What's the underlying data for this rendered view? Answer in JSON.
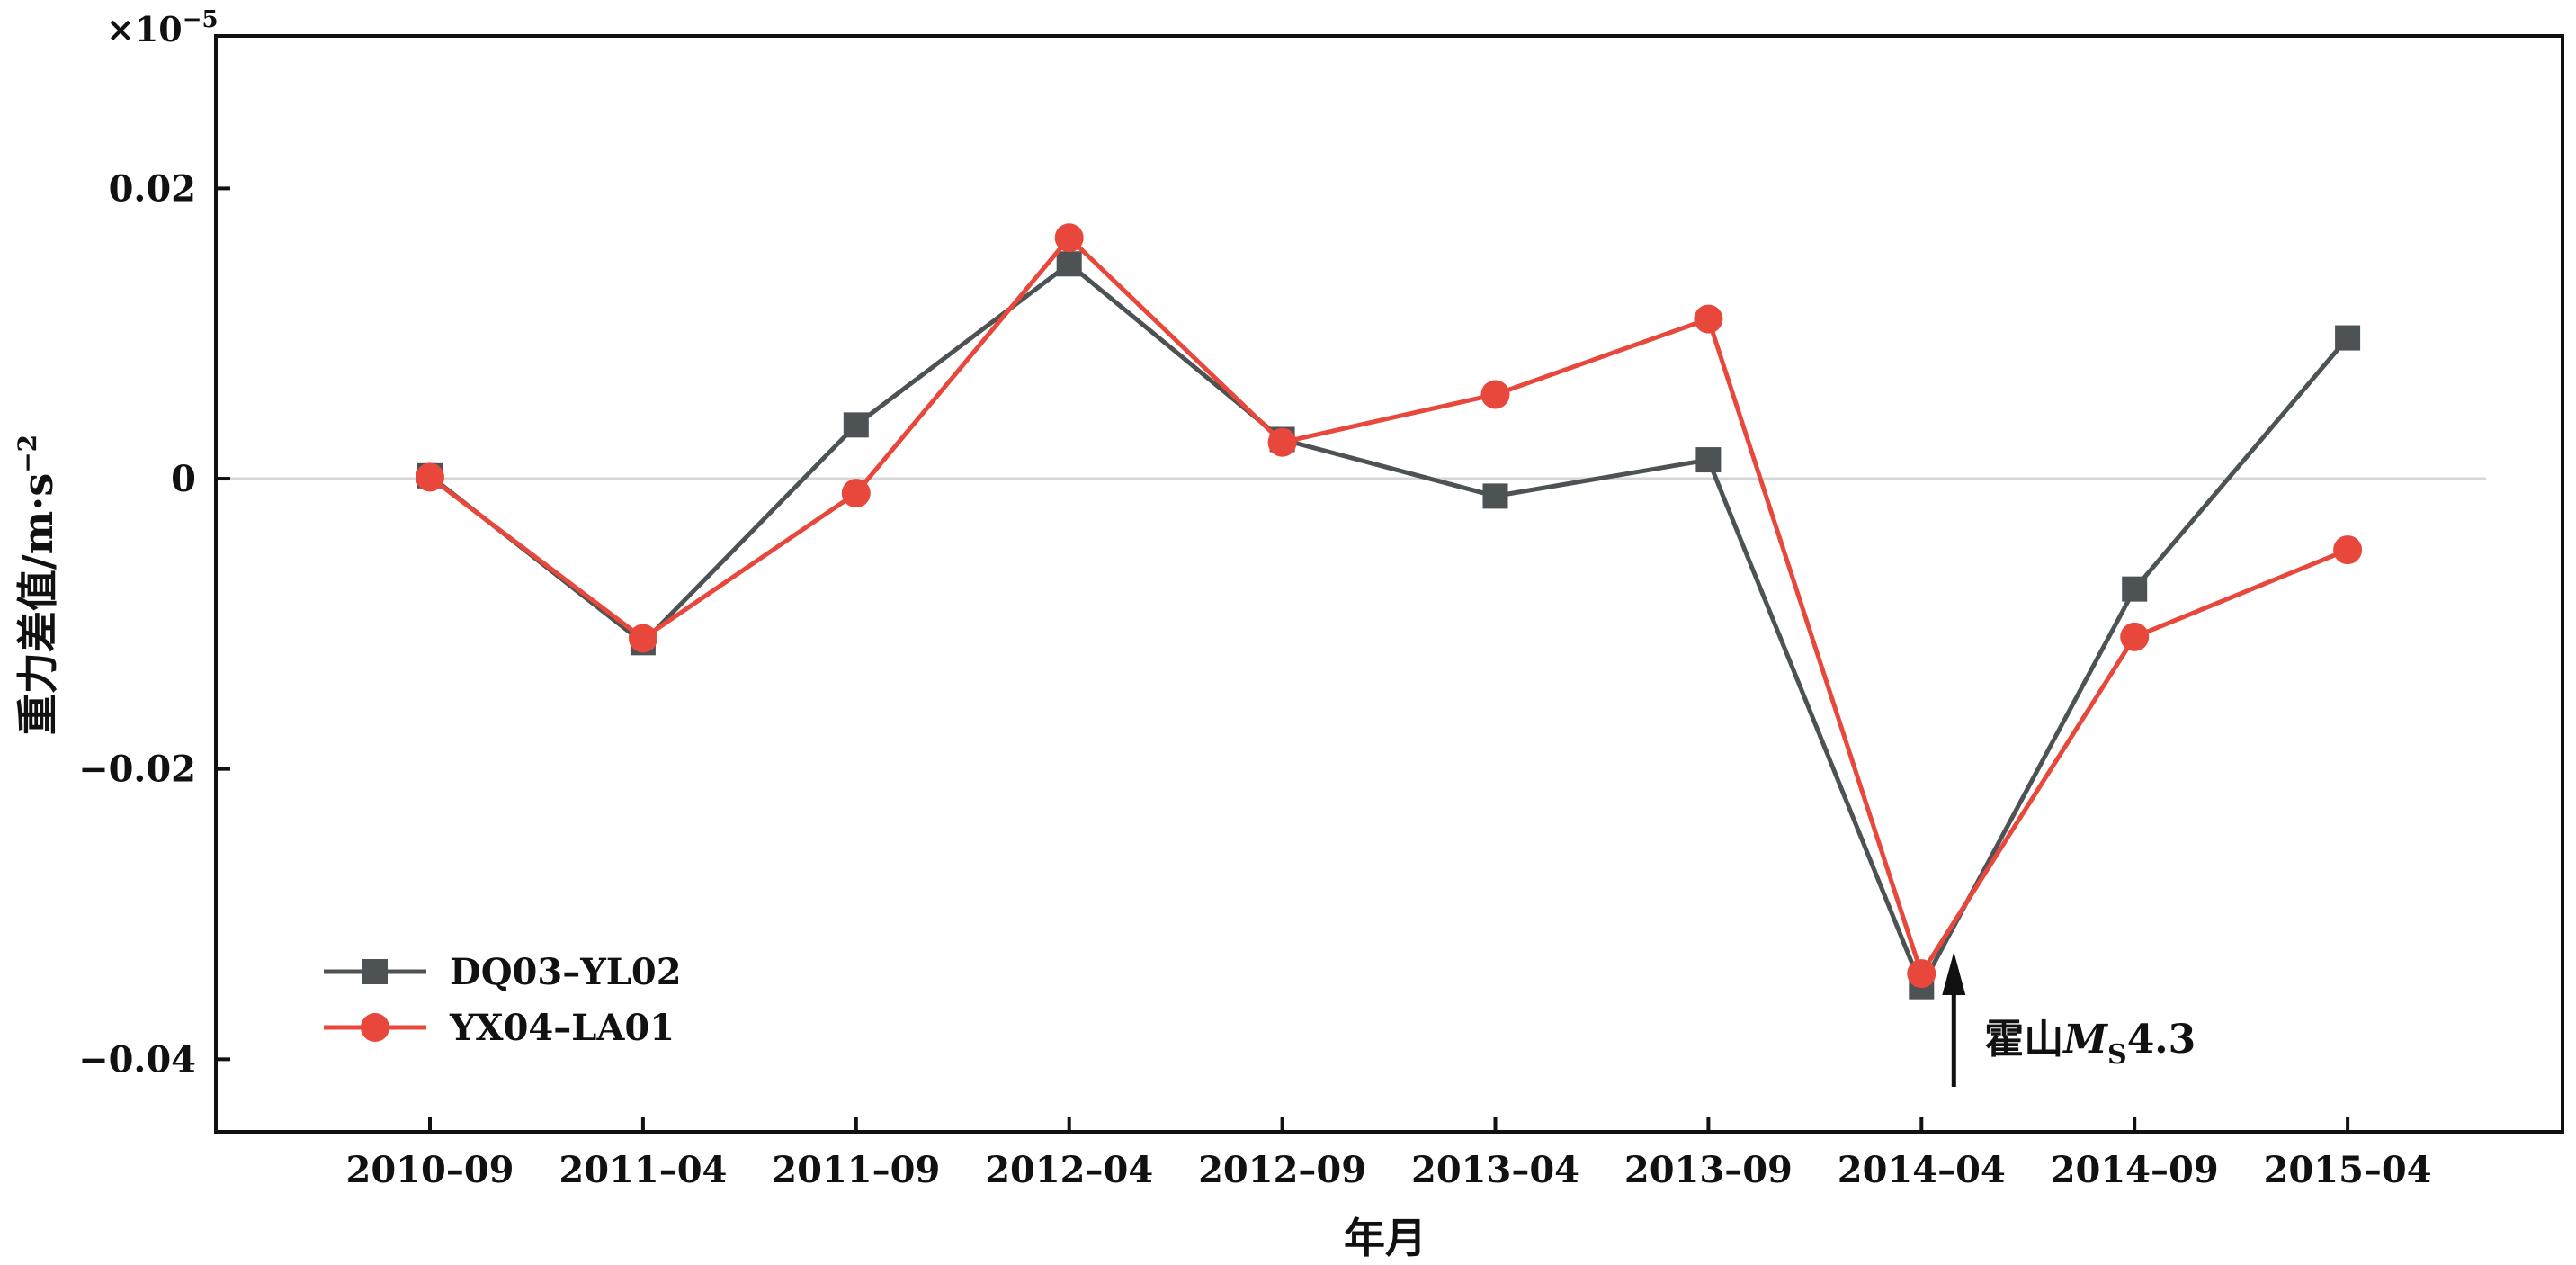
{
  "chart_data": {
    "type": "line",
    "xlabel": "年月",
    "ylabel": "重力差值/m·s",
    "ylabel_sup": "−2",
    "y_scale_prefix": "×10",
    "y_scale_exp": "−5",
    "categories": [
      "2010–09",
      "2011–04",
      "2011–09",
      "2012–04",
      "2012–09",
      "2013–04",
      "2013–09",
      "2014–04",
      "2014–09",
      "2015–04"
    ],
    "ylim": [
      -0.045,
      0.0305
    ],
    "yticks": [
      0.02,
      0,
      -0.02,
      -0.04
    ],
    "ytick_labels": [
      "0.02",
      "0",
      "−0.02",
      "−0.04"
    ],
    "zero_line": true,
    "legend_position": "bottom-left",
    "series": [
      {
        "name": "DQ03–YL02",
        "color": "#4d5254",
        "marker": "square",
        "values": [
          0.0002,
          -0.0113,
          0.0037,
          0.0148,
          0.0027,
          -0.0012,
          0.0013,
          -0.035,
          -0.0076,
          0.0097
        ]
      },
      {
        "name": "YX04–LA01",
        "color": "#e8473b",
        "marker": "circle",
        "values": [
          0.0001,
          -0.011,
          -0.001,
          0.0166,
          0.0025,
          0.0058,
          0.011,
          -0.0341,
          -0.0109,
          -0.0049
        ]
      }
    ],
    "annotation": {
      "category": "2014–04",
      "text_main": "霍山",
      "text_italic": "M",
      "text_sub": "S",
      "text_tail": "4.3"
    }
  }
}
